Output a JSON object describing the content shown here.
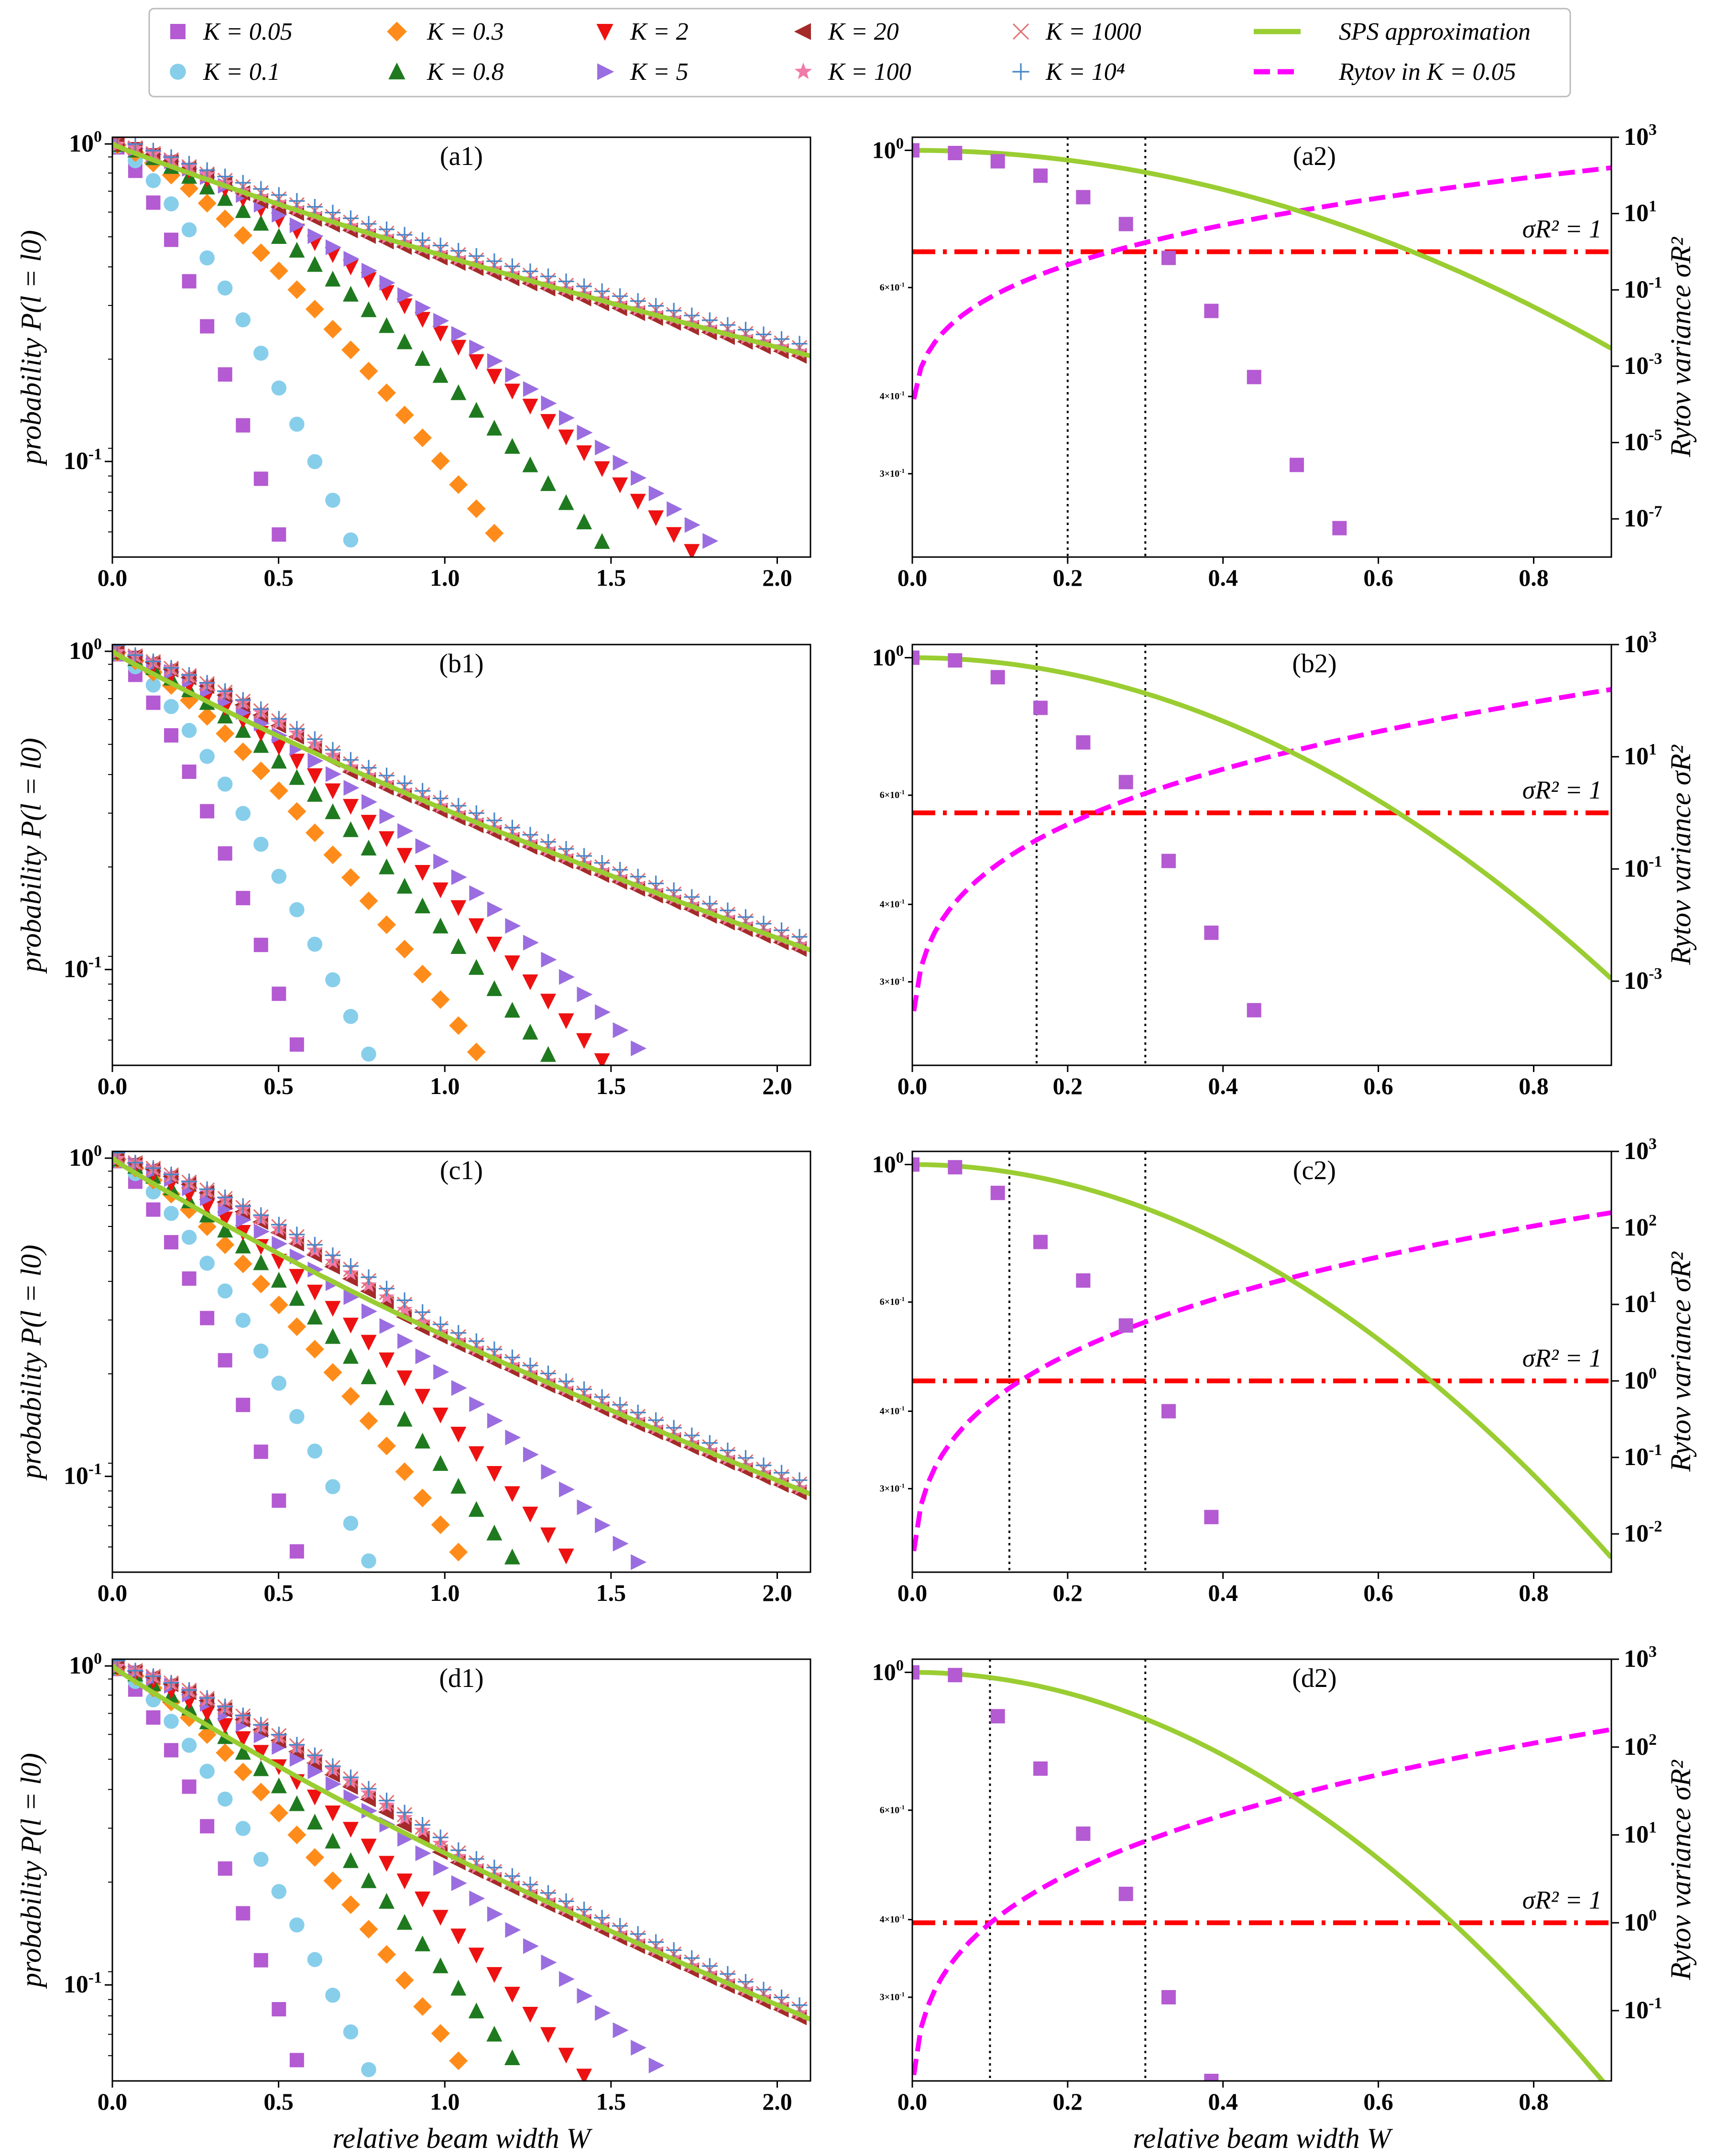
{
  "legend": {
    "entries": [
      {
        "label": "K = 0.05",
        "marker": "square",
        "color": "#b45ad2"
      },
      {
        "label": "K = 0.1",
        "marker": "circle",
        "color": "#87ceeb"
      },
      {
        "label": "K = 0.3",
        "marker": "diamond",
        "color": "#ff8c1a"
      },
      {
        "label": "K = 0.8",
        "marker": "triangle-up",
        "color": "#1f7a1f"
      },
      {
        "label": "K = 2",
        "marker": "triangle-down",
        "color": "#ee1111"
      },
      {
        "label": "K = 5",
        "marker": "triangle-right",
        "color": "#9a6ee0"
      },
      {
        "label": "K = 20",
        "marker": "triangle-left",
        "color": "#a52a2a"
      },
      {
        "label": "K = 100",
        "marker": "star",
        "color": "#f07aa8"
      },
      {
        "label": "K = 1000",
        "marker": "x",
        "color": "#e07070"
      },
      {
        "label": "K = 10⁴",
        "marker": "plus",
        "color": "#4a86c8"
      },
      {
        "label": "SPS approximation",
        "marker": "line",
        "color": "#9acd32"
      },
      {
        "label": "Rytov in K = 0.05",
        "marker": "dashed",
        "color": "#ff00ff"
      }
    ]
  },
  "chart_data": [
    {
      "id": "a1",
      "type": "scatter",
      "title": "(a1)",
      "xlabel": "",
      "ylabel": "probability P(l = l0)",
      "xlim": [
        0,
        2.1
      ],
      "ylim": [
        0.05,
        1.05
      ],
      "yscale": "log",
      "xticks": [
        "0.0",
        "0.5",
        "1.0",
        "1.5",
        "2.0"
      ],
      "yticks": [
        "10^0",
        "10^-1"
      ],
      "decay": [
        8.0,
        5.0,
        2.6,
        1.9,
        1.55,
        1.45,
        1.4,
        1.35,
        1.33,
        1.32
      ],
      "sps": 0.215,
      "curve_shape": "soft"
    },
    {
      "id": "a2",
      "type": "scatter",
      "title": "(a2)",
      "xlabel": "",
      "ylabel": "",
      "y2label": "Rytov variance σR²",
      "xlim": [
        0,
        0.9
      ],
      "ylim": [
        0.22,
        1.05
      ],
      "yscale": "log",
      "xticks": [
        "0.0",
        "0.2",
        "0.4",
        "0.6",
        "0.8"
      ],
      "yticks": [
        "10^0",
        "6×10^-1",
        "4×10^-1",
        "3×10^-1"
      ],
      "y2lim": [
        -8,
        3
      ],
      "y2ticks": [
        "10^3",
        "10^1",
        "10^-1",
        "10^-3",
        "10^-5",
        "10^-7"
      ],
      "points_x": [
        0.0,
        0.055,
        0.11,
        0.165,
        0.22,
        0.275,
        0.33,
        0.385,
        0.44,
        0.495,
        0.55
      ],
      "points_y": [
        1.0,
        0.99,
        0.96,
        0.91,
        0.84,
        0.76,
        0.67,
        0.55,
        0.43,
        0.31,
        0.245
      ],
      "sps_end": 0.46,
      "sps_width": 0.28,
      "vlines": [
        0.2,
        0.3
      ],
      "sigma1": 1,
      "annotation": "σR² = 1",
      "ryt_start": -5.2
    },
    {
      "id": "b1",
      "type": "scatter",
      "title": "(b1)",
      "xlabel": "",
      "ylabel": "probability P(l = l0)",
      "xlim": [
        0,
        2.1
      ],
      "ylim": [
        0.05,
        1.05
      ],
      "yscale": "log",
      "xticks": [
        "0.0",
        "0.5",
        "1.0",
        "1.5",
        "2.0"
      ],
      "yticks": [
        "10^0",
        "10^-1"
      ],
      "decay": [
        7.0,
        4.6,
        2.85,
        2.25,
        1.95,
        1.72,
        1.52,
        1.46,
        1.42,
        1.38
      ],
      "sps": 0.115,
      "curve_shape": "soft"
    },
    {
      "id": "b2",
      "type": "scatter",
      "title": "(b2)",
      "xlabel": "",
      "ylabel": "",
      "y2label": "Rytov variance σR²",
      "xlim": [
        0,
        0.9
      ],
      "ylim": [
        0.22,
        1.05
      ],
      "yscale": "log",
      "xticks": [
        "0.0",
        "0.2",
        "0.4",
        "0.6",
        "0.8"
      ],
      "yticks": [
        "10^0",
        "6×10^-1",
        "4×10^-1",
        "3×10^-1"
      ],
      "y2lim": [
        -4.5,
        3
      ],
      "y2ticks": [
        "10^3",
        "10^1",
        "10^-1",
        "10^-3"
      ],
      "points_x": [
        0.0,
        0.055,
        0.11,
        0.165,
        0.22,
        0.275,
        0.33,
        0.385,
        0.44
      ],
      "points_y": [
        1.0,
        0.99,
        0.93,
        0.83,
        0.73,
        0.63,
        0.47,
        0.36,
        0.27
      ],
      "sps_end": 0.285,
      "sps_width": 0.25,
      "vlines": [
        0.16,
        0.3
      ],
      "sigma1": 1,
      "annotation": "σR² = 1",
      "ryt_start": -4.8
    },
    {
      "id": "c1",
      "type": "scatter",
      "title": "(c1)",
      "xlabel": "",
      "ylabel": "probability P(l = l0)",
      "xlim": [
        0,
        2.1
      ],
      "ylim": [
        0.05,
        1.05
      ],
      "yscale": "log",
      "xticks": [
        "0.0",
        "0.5",
        "1.0",
        "1.5",
        "2.0"
      ],
      "yticks": [
        "10^0",
        "10^-1"
      ],
      "decay": [
        7.0,
        4.6,
        3.0,
        2.5,
        2.1,
        1.75,
        1.52,
        1.45,
        1.4,
        1.36
      ],
      "sps": 0.088,
      "curve_shape": "soft"
    },
    {
      "id": "c2",
      "type": "scatter",
      "title": "(c2)",
      "xlabel": "",
      "ylabel": "",
      "y2label": "Rytov variance σR²",
      "xlim": [
        0,
        0.9
      ],
      "ylim": [
        0.22,
        1.05
      ],
      "yscale": "log",
      "xticks": [
        "0.0",
        "0.2",
        "0.4",
        "0.6",
        "0.8"
      ],
      "yticks": [
        "10^0",
        "6×10^-1",
        "4×10^-1",
        "3×10^-1"
      ],
      "y2lim": [
        -2.5,
        3
      ],
      "y2ticks": [
        "10^3",
        "10^2",
        "10^1",
        "10^0",
        "10^-1",
        "10^-2"
      ],
      "points_x": [
        0.0,
        0.055,
        0.11,
        0.165,
        0.22,
        0.275,
        0.33,
        0.385
      ],
      "points_y": [
        1.0,
        0.99,
        0.9,
        0.75,
        0.65,
        0.55,
        0.4,
        0.27
      ],
      "sps_end": 0.215,
      "sps_width": 0.3,
      "vlines": [
        0.125,
        0.3
      ],
      "sigma1": 1,
      "annotation": "σR² = 1",
      "ryt_start": -3.2
    },
    {
      "id": "d1",
      "type": "scatter",
      "title": "(d1)",
      "xlabel": "relative beam width W",
      "ylabel": "probability P(l = l0)",
      "xlim": [
        0,
        2.1
      ],
      "ylim": [
        0.05,
        1.05
      ],
      "yscale": "log",
      "xticks": [
        "0.0",
        "0.5",
        "1.0",
        "1.5",
        "2.0"
      ],
      "yticks": [
        "10^0",
        "10^-1"
      ],
      "decay": [
        7.0,
        4.6,
        3.0,
        2.45,
        2.05,
        1.65,
        1.52,
        1.45,
        1.42,
        1.4
      ],
      "sps": 0.078,
      "curve_shape": "soft"
    },
    {
      "id": "d2",
      "type": "scatter",
      "title": "(d2)",
      "xlabel": "relative beam width W",
      "ylabel": "",
      "y2label": "Rytov variance σR²",
      "xlim": [
        0,
        0.9
      ],
      "ylim": [
        0.22,
        1.05
      ],
      "yscale": "log",
      "xticks": [
        "0.0",
        "0.2",
        "0.4",
        "0.6",
        "0.8"
      ],
      "yticks": [
        "10^0",
        "6×10^-1",
        "4×10^-1",
        "3×10^-1"
      ],
      "y2lim": [
        -1.8,
        3
      ],
      "y2ticks": [
        "10^3",
        "10^2",
        "10^1",
        "10^0",
        "10^-1"
      ],
      "points_x": [
        0.0,
        0.055,
        0.11,
        0.165,
        0.22,
        0.275,
        0.33,
        0.385
      ],
      "points_y": [
        1.0,
        0.99,
        0.85,
        0.7,
        0.55,
        0.44,
        0.3,
        0.22
      ],
      "sps_end": 0.195,
      "sps_width": 0.28,
      "vlines": [
        0.1,
        0.3
      ],
      "sigma1": 1,
      "annotation": "σR² = 1",
      "ryt_start": -2.6
    }
  ]
}
